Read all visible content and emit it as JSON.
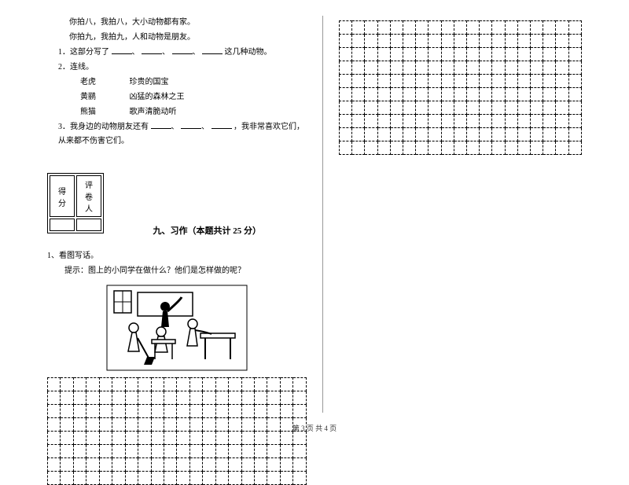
{
  "reading": {
    "rhyme1": "你拍八，我拍八，大小动物都有家。",
    "rhyme2": "你拍九，我拍九，人和动物是朋友。",
    "q1_prefix": "1．这部分写了",
    "q1_suffix": "这几种动物。",
    "q2": "2．连线。",
    "match": {
      "a1": "老虎",
      "b1": "珍贵的国宝",
      "a2": "黄鹂",
      "b2": "凶猛的森林之王",
      "a3": "熊猫",
      "b3": "歌声清脆动听"
    },
    "q3_prefix": "3．我身边的动物朋友还有",
    "q3_suffix": "，我非常喜欢它们，从来都不伤害它们。"
  },
  "score_labels": {
    "score": "得分",
    "reviewer": "评卷人"
  },
  "section9": {
    "title": "九、习作（本题共计 25 分）",
    "item1": "1、看图写话。",
    "hint": "提示：图上的小同学在做什么？他们是怎样做的呢？"
  },
  "grids": {
    "left_cols": 20,
    "left_rows": 8,
    "right_cols": 19,
    "right_rows": 10
  },
  "footer": "第 3 页 共 4 页",
  "colors": {
    "text": "#000000",
    "bg": "#ffffff",
    "dashed": "#000000"
  }
}
